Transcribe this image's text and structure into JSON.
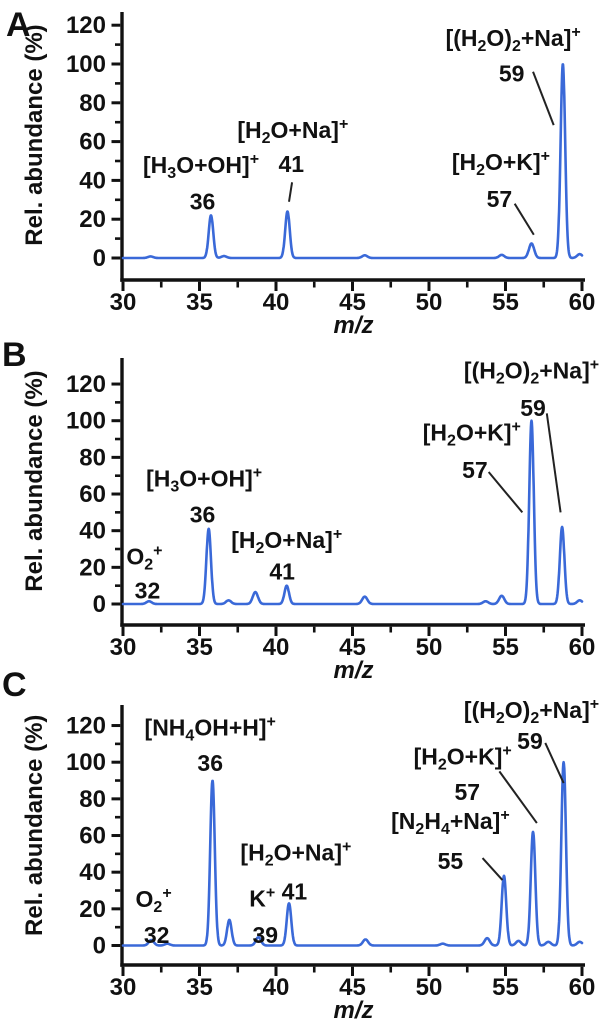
{
  "figure": {
    "description": "Three stacked mass spectra panels",
    "panel_letters": [
      "A",
      "B",
      "C"
    ],
    "colors": {
      "line": "#3a69d8",
      "axis": "#111111",
      "text": "#111111",
      "leader": "#222222",
      "background": "#ffffff"
    }
  },
  "axes": {
    "xlabel": "m/z",
    "ylabel": "Rel. abundance (%)",
    "xlim": [
      30,
      60
    ],
    "ylim": [
      0,
      120
    ],
    "xticks": [
      30,
      35,
      40,
      45,
      50,
      55,
      60
    ],
    "xminor": [
      32.5,
      37.5,
      42.5,
      47.5,
      52.5,
      57.5
    ],
    "yticks": [
      0,
      20,
      40,
      60,
      80,
      100,
      120
    ],
    "yminor": [
      10,
      30,
      50,
      70,
      90,
      110
    ]
  },
  "chart_data": [
    {
      "panel": "A",
      "type": "line",
      "xlabel": "m/z",
      "ylabel": "Rel. abundance (%)",
      "xlim": [
        30,
        60
      ],
      "ylim": [
        0,
        120
      ],
      "peaks": [
        {
          "mz": 31.8,
          "rel": 0.8
        },
        {
          "mz": 35.75,
          "rel": 22
        },
        {
          "mz": 36.6,
          "rel": 1
        },
        {
          "mz": 40.75,
          "rel": 24
        },
        {
          "mz": 45.8,
          "rel": 1.4
        },
        {
          "mz": 54.75,
          "rel": 1.6
        },
        {
          "mz": 56.7,
          "rel": 7.5
        },
        {
          "mz": 58.75,
          "rel": 100
        },
        {
          "mz": 59.85,
          "rel": 2
        }
      ],
      "annotations": [
        {
          "formula": "[H_3O+OH]^+",
          "mass": "36",
          "fx": 35.1,
          "fy": 48,
          "mx": 35.2,
          "my": 29
        },
        {
          "formula": "[H_2O+Na]^+",
          "mass": "41",
          "fx": 41.1,
          "fy": 66,
          "mx": 41.0,
          "my": 48.5,
          "leader": [
            41.05,
            39,
            40.85,
            29
          ]
        },
        {
          "formula": "[H_2O+K]^+",
          "mass": "57",
          "fx": 54.7,
          "fy": 49.5,
          "mx": 54.6,
          "my": 30.5,
          "leader": [
            55.6,
            28,
            56.85,
            12
          ]
        },
        {
          "formula": "[(H_2O)_2+Na]^+",
          "mass": "59",
          "fx": 55.5,
          "fy": 113.5,
          "mx": 55.4,
          "my": 95,
          "leader": [
            56.8,
            96,
            58.15,
            68.5
          ]
        }
      ]
    },
    {
      "panel": "B",
      "type": "line",
      "xlabel": "m/z",
      "ylabel": "Rel. abundance (%)",
      "xlim": [
        30,
        60
      ],
      "ylim": [
        0,
        120
      ],
      "peaks": [
        {
          "mz": 31.7,
          "rel": 1.5
        },
        {
          "mz": 35.6,
          "rel": 41
        },
        {
          "mz": 36.9,
          "rel": 2
        },
        {
          "mz": 38.65,
          "rel": 6.5
        },
        {
          "mz": 40.7,
          "rel": 10
        },
        {
          "mz": 45.8,
          "rel": 4
        },
        {
          "mz": 53.7,
          "rel": 1.5
        },
        {
          "mz": 54.75,
          "rel": 4.5
        },
        {
          "mz": 56.7,
          "rel": 100
        },
        {
          "mz": 58.7,
          "rel": 42
        },
        {
          "mz": 59.85,
          "rel": 2
        }
      ],
      "annotations": [
        {
          "formula": "O_2^+",
          "mass": "32",
          "fx": 31.4,
          "fy": 26,
          "mx": 31.6,
          "my": 7.4
        },
        {
          "formula": "[H_3O+OH]^+",
          "mass": "36",
          "fx": 35.3,
          "fy": 68.5,
          "mx": 35.2,
          "my": 48.8
        },
        {
          "formula": "[H_2O+Na]^+",
          "mass": "41",
          "fx": 40.7,
          "fy": 35,
          "mx": 40.4,
          "my": 17.7
        },
        {
          "formula": "[H_2O+K]^+",
          "mass": "57",
          "fx": 52.8,
          "fy": 93.5,
          "mx": 53.0,
          "my": 73,
          "leader": [
            53.9,
            72,
            56.1,
            50
          ]
        },
        {
          "formula": "[(H_2O)_2+Na]^+",
          "mass": "59",
          "fx": 56.7,
          "fy": 127.5,
          "mx": 56.8,
          "my": 107,
          "leader": [
            57.7,
            104,
            58.6,
            50
          ]
        }
      ]
    },
    {
      "panel": "C",
      "type": "line",
      "xlabel": "m/z",
      "ylabel": "Rel. abundance (%)",
      "xlim": [
        30,
        60
      ],
      "ylim": [
        0,
        120
      ],
      "peaks": [
        {
          "mz": 31.85,
          "rel": 3
        },
        {
          "mz": 32.9,
          "rel": 1
        },
        {
          "mz": 35.85,
          "rel": 90
        },
        {
          "mz": 36.95,
          "rel": 14
        },
        {
          "mz": 38.85,
          "rel": 4.5
        },
        {
          "mz": 40.85,
          "rel": 23
        },
        {
          "mz": 45.85,
          "rel": 3.3
        },
        {
          "mz": 50.9,
          "rel": 1
        },
        {
          "mz": 53.8,
          "rel": 4
        },
        {
          "mz": 54.9,
          "rel": 38
        },
        {
          "mz": 55.85,
          "rel": 2.5
        },
        {
          "mz": 56.8,
          "rel": 62
        },
        {
          "mz": 57.8,
          "rel": 2
        },
        {
          "mz": 58.8,
          "rel": 100
        },
        {
          "mz": 59.85,
          "rel": 2
        }
      ],
      "annotations": [
        {
          "formula": "O_2^+",
          "mass": "32",
          "fx": 32.0,
          "fy": 25.4,
          "mx": 32.2,
          "my": 5.7
        },
        {
          "formula": "[NH_4OH+H]^+",
          "mass": "36",
          "fx": 35.7,
          "fy": 119,
          "mx": 35.7,
          "my": 99.6
        },
        {
          "formula": "K^+",
          "mass": "39",
          "fx": 39.1,
          "fy": 25.6,
          "mx": 39.3,
          "my": 5.7
        },
        {
          "formula": "[H_2O+Na]^+",
          "mass": "41",
          "fx": 41.3,
          "fy": 50.7,
          "mx": 41.2,
          "my": 29.5
        },
        {
          "formula": "[N_2H_4+Na]^+",
          "mass": "55",
          "fx": 51.4,
          "fy": 68,
          "mx": 51.4,
          "my": 46,
          "leader": [
            53.5,
            47.7,
            54.8,
            35.7
          ]
        },
        {
          "formula": "[H_2O+K]^+",
          "mass": "57",
          "fx": 52.2,
          "fy": 103,
          "mx": 52.5,
          "my": 83.7,
          "leader": [
            54.6,
            95,
            57.05,
            66.8
          ]
        },
        {
          "formula": "[(H_2O)_2+Na]^+",
          "mass": "59",
          "fx": 56.7,
          "fy": 128.5,
          "mx": 56.6,
          "my": 111.6,
          "leader": [
            57.6,
            110.5,
            58.8,
            88.6
          ]
        }
      ]
    }
  ]
}
